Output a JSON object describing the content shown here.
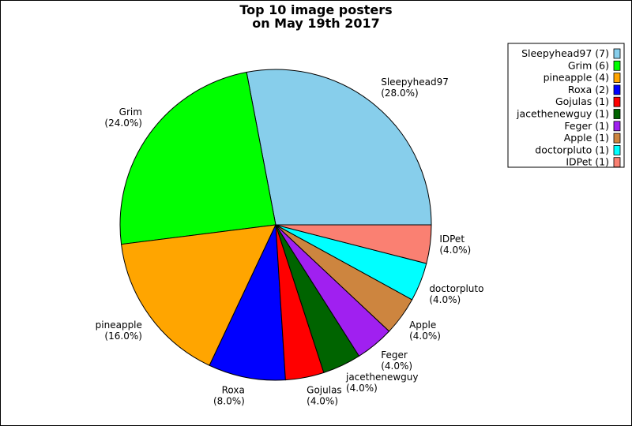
{
  "chart_data": {
    "type": "pie",
    "title_lines": [
      "Top 10 image posters",
      "on May 19th 2017"
    ],
    "slices": [
      {
        "name": "Sleepyhead97",
        "count": 7,
        "percent": "28.0%",
        "legend": "Sleepyhead97 (7)",
        "color": "#87ceeb"
      },
      {
        "name": "Grim",
        "count": 6,
        "percent": "24.0%",
        "legend": "Grim (6)",
        "color": "#00ff00"
      },
      {
        "name": "pineapple",
        "count": 4,
        "percent": "16.0%",
        "legend": "pineapple (4)",
        "color": "#ffa500"
      },
      {
        "name": "Roxa",
        "count": 2,
        "percent": "8.0%",
        "legend": "Roxa (2)",
        "color": "#0000ff"
      },
      {
        "name": "Gojulas",
        "count": 1,
        "percent": "4.0%",
        "legend": "Gojulas (1)",
        "color": "#ff0000"
      },
      {
        "name": "jacethenewguy",
        "count": 1,
        "percent": "4.0%",
        "legend": "jacethenewguy (1)",
        "color": "#006400"
      },
      {
        "name": "Feger",
        "count": 1,
        "percent": "4.0%",
        "legend": "Feger (1)",
        "color": "#a020f0"
      },
      {
        "name": "Apple",
        "count": 1,
        "percent": "4.0%",
        "legend": "Apple (1)",
        "color": "#cd853f"
      },
      {
        "name": "doctorpluto",
        "count": 1,
        "percent": "4.0%",
        "legend": "doctorpluto (1)",
        "color": "#00ffff"
      },
      {
        "name": "IDPet",
        "count": 1,
        "percent": "4.0%",
        "legend": "IDPet (1)",
        "color": "#fa8072"
      }
    ],
    "start_angle_deg": 0,
    "direction": "counterclockwise",
    "legend_position": "top-right"
  }
}
